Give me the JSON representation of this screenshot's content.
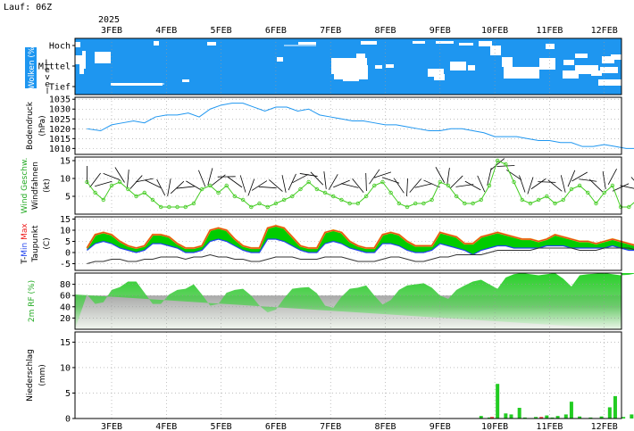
{
  "header": {
    "run_label": "Lauf: 06Z",
    "year": "2025"
  },
  "colors": {
    "clouds": "#1e96f0",
    "pressure_line": "#1e96f0",
    "wind_line": "#44cc22",
    "wind_barbs": "#000000",
    "temp_fill": "#00cc00",
    "temp_max": "#ee2222",
    "temp_min": "#2244ee",
    "dewpoint": "#333333",
    "rh_fill": "#22bb22",
    "precip_bar": "#22cc22",
    "precip_bar_alt": "#ee3333"
  },
  "chart_data": [
    {
      "id": "clouds",
      "type": "heatmap",
      "ylabel": "Wolken (%)",
      "side_label": "Level",
      "levels": [
        "Hoch",
        "Mittel",
        "Tief"
      ],
      "x": [
        "3FEB",
        "4FEB",
        "5FEB",
        "6FEB",
        "7FEB",
        "8FEB",
        "9FEB",
        "10FEB",
        "11FEB",
        "12FEB"
      ],
      "xlim": [
        0,
        9.8
      ],
      "note_values": "cloud cover fraction per level; most of period fully overcast (blue)"
    },
    {
      "id": "pressure",
      "type": "line",
      "ylabel": "Bodendruck",
      "unit": "(hPa)",
      "ylim": [
        1007,
        1036
      ],
      "yticks": [
        1010,
        1015,
        1020,
        1025,
        1030,
        1035
      ],
      "x": [
        -0.45,
        -0.2,
        0.0,
        0.2,
        0.4,
        0.6,
        0.8,
        1.0,
        1.2,
        1.4,
        1.6,
        1.8,
        2.0,
        2.2,
        2.4,
        2.6,
        2.8,
        3.0,
        3.2,
        3.4,
        3.6,
        3.8,
        4.0,
        4.2,
        4.4,
        4.6,
        4.8,
        5.0,
        5.2,
        5.4,
        5.6,
        5.8,
        6.0,
        6.2,
        6.4,
        6.6,
        6.8,
        7.0,
        7.2,
        7.4,
        7.6,
        7.8,
        8.0,
        8.2,
        8.4,
        8.6,
        8.8,
        9.0,
        9.2,
        9.4,
        9.6,
        9.8
      ],
      "values": [
        1020,
        1019,
        1022,
        1023,
        1024,
        1023,
        1026,
        1027,
        1027,
        1028,
        1026,
        1030,
        1032,
        1033,
        1033,
        1031,
        1029,
        1031,
        1031,
        1029,
        1030,
        1027,
        1026,
        1025,
        1024,
        1024,
        1023,
        1022,
        1022,
        1021,
        1020,
        1019,
        1019,
        1020,
        1020,
        1019,
        1018,
        1016,
        1016,
        1016,
        1015,
        1014,
        1014,
        1013,
        1013,
        1011,
        1011,
        1012,
        1011,
        1010,
        1010,
        1010
      ]
    },
    {
      "id": "wind",
      "type": "line",
      "ylabel": "Wind Geschw.",
      "side_label": "Windfahnen",
      "unit": "(kt)",
      "ylim": [
        0,
        16
      ],
      "yticks": [
        5,
        10,
        15
      ],
      "x": [
        -0.45,
        -0.3,
        -0.15,
        0.0,
        0.15,
        0.3,
        0.45,
        0.6,
        0.75,
        0.9,
        1.05,
        1.2,
        1.35,
        1.5,
        1.65,
        1.8,
        1.95,
        2.1,
        2.25,
        2.4,
        2.55,
        2.7,
        2.85,
        3.0,
        3.15,
        3.3,
        3.45,
        3.6,
        3.75,
        3.9,
        4.05,
        4.2,
        4.35,
        4.5,
        4.65,
        4.8,
        4.95,
        5.1,
        5.25,
        5.4,
        5.55,
        5.7,
        5.85,
        6.0,
        6.15,
        6.3,
        6.45,
        6.6,
        6.75,
        6.9,
        7.05,
        7.2,
        7.35,
        7.5,
        7.65,
        7.8,
        7.95,
        8.1,
        8.25,
        8.4,
        8.55,
        8.7,
        8.85,
        9.0,
        9.15,
        9.3,
        9.45,
        9.6,
        9.75
      ],
      "values": [
        9,
        6,
        4,
        8,
        9,
        7,
        5,
        6,
        4,
        2,
        2,
        2,
        2,
        3,
        7,
        8,
        6,
        8,
        5,
        4,
        2,
        3,
        2,
        3,
        4,
        5,
        7,
        9,
        7,
        6,
        5,
        4,
        3,
        3,
        5,
        8,
        9,
        6,
        3,
        2,
        3,
        3,
        4,
        9,
        8,
        5,
        3,
        3,
        4,
        8,
        15,
        14,
        9,
        4,
        3,
        4,
        5,
        3,
        4,
        7,
        8,
        6,
        3,
        6,
        8,
        2,
        2,
        4,
        3
      ],
      "barbs_note": "black wind barbs per time step"
    },
    {
      "id": "temperature",
      "type": "area",
      "ylabel": "T-Min Max",
      "side_label": "Taupunkt",
      "unit": "(C)",
      "ylim": [
        -8,
        16
      ],
      "yticks": [
        -5,
        0,
        5,
        10,
        15
      ],
      "x": [
        -0.45,
        -0.3,
        -0.15,
        0.0,
        0.15,
        0.3,
        0.45,
        0.6,
        0.75,
        0.9,
        1.05,
        1.2,
        1.35,
        1.5,
        1.65,
        1.8,
        1.95,
        2.1,
        2.25,
        2.4,
        2.55,
        2.7,
        2.85,
        3.0,
        3.15,
        3.3,
        3.45,
        3.6,
        3.75,
        3.9,
        4.05,
        4.2,
        4.35,
        4.5,
        4.65,
        4.8,
        4.95,
        5.1,
        5.25,
        5.4,
        5.55,
        5.7,
        5.85,
        6.0,
        6.15,
        6.3,
        6.45,
        6.6,
        6.75,
        6.9,
        7.05,
        7.2,
        7.35,
        7.5,
        7.65,
        7.8,
        7.95,
        8.1,
        8.25,
        8.4,
        8.55,
        8.7,
        8.85,
        9.0,
        9.15,
        9.3,
        9.45,
        9.6,
        9.75
      ],
      "series": [
        {
          "name": "T-Max",
          "values": [
            2,
            8,
            9,
            8,
            5,
            3,
            2,
            3,
            8,
            8,
            7,
            4,
            2,
            2,
            3,
            10,
            11,
            10,
            6,
            3,
            2,
            2,
            11,
            12,
            11,
            7,
            3,
            2,
            2,
            9,
            10,
            9,
            5,
            3,
            2,
            2,
            8,
            9,
            8,
            5,
            3,
            3,
            3,
            9,
            8,
            7,
            4,
            4,
            7,
            8,
            9,
            8,
            7,
            6,
            6,
            5,
            6,
            8,
            7,
            6,
            5,
            5,
            4,
            5,
            6,
            5,
            4,
            3,
            2
          ]
        },
        {
          "name": "T-Min",
          "values": [
            1,
            4,
            5,
            4,
            2,
            1,
            0,
            1,
            4,
            4,
            3,
            2,
            0,
            0,
            1,
            5,
            6,
            5,
            3,
            1,
            0,
            0,
            6,
            6,
            5,
            3,
            1,
            0,
            0,
            4,
            5,
            4,
            2,
            1,
            0,
            0,
            4,
            4,
            3,
            1,
            0,
            0,
            1,
            4,
            3,
            2,
            1,
            -1,
            1,
            2,
            3,
            3,
            2,
            2,
            2,
            2,
            3,
            3,
            3,
            2,
            2,
            2,
            2,
            2,
            3,
            2,
            1,
            1,
            1
          ]
        },
        {
          "name": "Taupunkt",
          "values": [
            -5,
            -4,
            -4,
            -3,
            -3,
            -4,
            -4,
            -3,
            -3,
            -2,
            -2,
            -2,
            -3,
            -2,
            -2,
            -1,
            -2,
            -2,
            -3,
            -3,
            -4,
            -4,
            -3,
            -2,
            -2,
            -2,
            -3,
            -3,
            -3,
            -2,
            -2,
            -2,
            -3,
            -4,
            -4,
            -4,
            -3,
            -2,
            -2,
            -3,
            -4,
            -4,
            -3,
            -2,
            -2,
            -1,
            -1,
            -1,
            -1,
            0,
            1,
            1,
            1,
            1,
            1,
            2,
            2,
            2,
            2,
            2,
            1,
            1,
            1,
            2,
            2,
            2,
            2,
            1,
            1
          ]
        }
      ]
    },
    {
      "id": "humidity",
      "type": "area",
      "ylabel": "2m RF",
      "unit": "(%)",
      "ylim": [
        0,
        100
      ],
      "yticks": [
        20,
        40,
        60,
        80
      ],
      "x": [
        -0.45,
        -0.3,
        -0.15,
        0.0,
        0.15,
        0.3,
        0.45,
        0.6,
        0.75,
        0.9,
        1.05,
        1.2,
        1.35,
        1.5,
        1.65,
        1.8,
        1.95,
        2.1,
        2.25,
        2.4,
        2.55,
        2.7,
        2.85,
        3.0,
        3.15,
        3.3,
        3.45,
        3.6,
        3.75,
        3.9,
        4.05,
        4.2,
        4.35,
        4.5,
        4.65,
        4.8,
        4.95,
        5.1,
        5.25,
        5.4,
        5.55,
        5.7,
        5.85,
        6.0,
        6.15,
        6.3,
        6.45,
        6.6,
        6.75,
        6.9,
        7.05,
        7.2,
        7.35,
        7.5,
        7.65,
        7.8,
        7.95,
        8.1,
        8.25,
        8.4,
        8.55,
        8.7,
        8.85,
        9.0,
        9.15,
        9.3,
        9.45,
        9.6,
        9.75
      ],
      "values": [
        62,
        45,
        48,
        70,
        75,
        85,
        85,
        65,
        45,
        45,
        62,
        70,
        72,
        80,
        62,
        42,
        45,
        65,
        70,
        72,
        60,
        42,
        30,
        35,
        55,
        72,
        74,
        75,
        64,
        42,
        38,
        58,
        72,
        74,
        78,
        60,
        44,
        52,
        70,
        78,
        80,
        82,
        74,
        60,
        54,
        70,
        78,
        85,
        88,
        80,
        72,
        92,
        98,
        100,
        98,
        96,
        98,
        100,
        90,
        76,
        96,
        98,
        99,
        100,
        98,
        96,
        97,
        100,
        100
      ]
    },
    {
      "id": "precip",
      "type": "bar",
      "ylabel": "Niederschlag",
      "unit": "(mm)",
      "ylim": [
        0,
        17
      ],
      "yticks": [
        0,
        5,
        10,
        15
      ],
      "x": [
        6.75,
        6.9,
        6.95,
        7.05,
        7.2,
        7.3,
        7.45,
        7.55,
        7.75,
        7.85,
        7.95,
        8.05,
        8.15,
        8.3,
        8.4,
        8.55,
        8.75,
        8.95,
        9.1,
        9.2,
        9.35,
        9.5,
        9.65
      ],
      "values": [
        0.5,
        0.2,
        0.3,
        6.8,
        1.0,
        0.8,
        2.1,
        0.2,
        0.3,
        0.3,
        0.6,
        0.2,
        0.5,
        0.8,
        3.3,
        0.4,
        0.2,
        0.4,
        2.2,
        4.4,
        0.3,
        0.8,
        1.2
      ],
      "red_indices": [
        2,
        9
      ]
    }
  ],
  "x_axis": {
    "labels": [
      "3FEB",
      "4FEB",
      "5FEB",
      "6FEB",
      "7FEB",
      "8FEB",
      "9FEB",
      "10FEB",
      "11FEB",
      "12FEB"
    ]
  }
}
